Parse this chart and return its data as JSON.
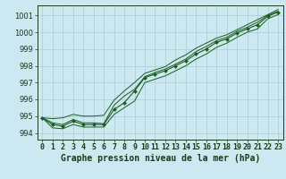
{
  "title": "Graphe pression niveau de la mer (hPa)",
  "xlabel_hours": [
    0,
    1,
    2,
    3,
    4,
    5,
    6,
    7,
    8,
    9,
    10,
    11,
    12,
    13,
    14,
    15,
    16,
    17,
    18,
    19,
    20,
    21,
    22,
    23
  ],
  "pressure_main": [
    994.9,
    994.5,
    994.4,
    994.7,
    994.5,
    994.5,
    994.5,
    995.4,
    995.8,
    996.5,
    997.3,
    997.5,
    997.7,
    998.0,
    998.3,
    998.7,
    999.0,
    999.4,
    999.6,
    999.95,
    1000.2,
    1000.45,
    1000.95,
    1001.2
  ],
  "pressure_high": [
    994.9,
    994.85,
    994.9,
    995.1,
    995.0,
    995.0,
    995.05,
    995.95,
    996.5,
    997.0,
    997.55,
    997.75,
    997.95,
    998.35,
    998.65,
    999.05,
    999.35,
    999.65,
    999.85,
    1000.15,
    1000.45,
    1000.75,
    1001.05,
    1001.35
  ],
  "pressure_low": [
    994.9,
    994.3,
    994.25,
    994.5,
    994.35,
    994.35,
    994.35,
    995.1,
    995.5,
    995.9,
    997.0,
    997.2,
    997.4,
    997.7,
    998.0,
    998.4,
    998.7,
    999.1,
    999.35,
    999.7,
    1000.0,
    1000.2,
    1000.8,
    1001.05
  ],
  "pressure_trend": [
    994.9,
    994.6,
    994.5,
    994.8,
    994.6,
    994.6,
    994.55,
    995.65,
    996.2,
    996.6,
    997.35,
    997.6,
    997.8,
    998.1,
    998.4,
    998.85,
    999.15,
    999.5,
    999.7,
    1000.05,
    1000.3,
    1000.6,
    1001.0,
    1001.25
  ],
  "ylim": [
    993.6,
    1001.6
  ],
  "yticks": [
    994,
    995,
    996,
    997,
    998,
    999,
    1000,
    1001
  ],
  "bg_color": "#cce8f0",
  "grid_color": "#aaccd8",
  "line_color": "#1a5c1a",
  "marker_color": "#1a5c1a",
  "label_color": "#1a3a1a",
  "title_fontsize": 7,
  "tick_fontsize": 6
}
